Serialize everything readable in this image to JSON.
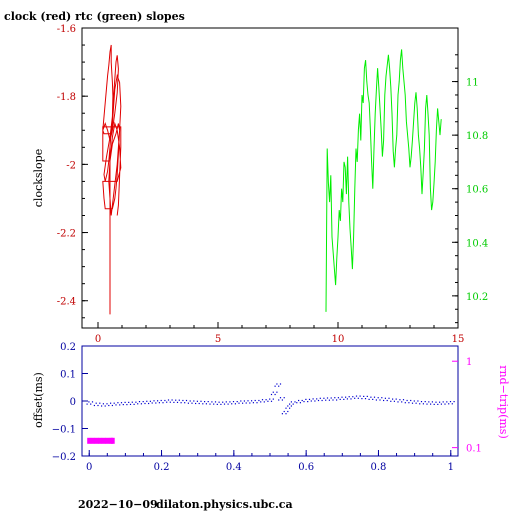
{
  "chart_data": [
    {
      "type": "line",
      "title": "clock (red) rtc (green) slopes",
      "ylabel": "clockslope",
      "xlim": [
        0,
        15
      ],
      "ylim_left": [
        -2.48,
        -1.6
      ],
      "ylim_right": [
        10.08,
        11.2
      ],
      "x_ticks": [
        "0",
        "5",
        "10",
        "15"
      ],
      "y_ticks_left": [
        "-1.6",
        "-1.8",
        "-2",
        "-2.2",
        "-2.4"
      ],
      "y_ticks_right": [
        "11",
        "10.8",
        "10.6",
        "10.4",
        "10.2"
      ],
      "colors": {
        "clock": "#e00000",
        "rtc": "#00ee00",
        "axis_left": "#c00000",
        "axis_bottom": "#c00000",
        "axis_right": "#00cc00"
      },
      "series": [
        {
          "axis": "left",
          "x": [
            0.2,
            0.3,
            0.35,
            0.4,
            0.45,
            0.5,
            0.55,
            0.55,
            0.6,
            0.62,
            0.6,
            0.55,
            0.5,
            0.45,
            0.4,
            0.3,
            0.25,
            0.35,
            0.5,
            0.6,
            0.65,
            0.7,
            0.75,
            0.8,
            0.85,
            0.8,
            0.7,
            0.6,
            0.5,
            0.4,
            0.3,
            0.2,
            0.25,
            0.35,
            0.45,
            0.55,
            0.6,
            0.65,
            0.7,
            0.8,
            0.9,
            0.95,
            0.9,
            0.85,
            0.8,
            0.75,
            0.7,
            0.6,
            0.5,
            0.4,
            0.3,
            0.25,
            0.2,
            0.25,
            0.5,
            0.8,
            0.95,
            0.9,
            0.8,
            0.7,
            0.6,
            0.5,
            0.45,
            0.5,
            0.55,
            0.6,
            0.7,
            0.8,
            0.85,
            0.9,
            0.85,
            0.75,
            0.6,
            0.5,
            0.4,
            0.3,
            0.2,
            0.2,
            0.95,
            0.95,
            0.85,
            0.8
          ],
          "y": [
            -1.9,
            -1.82,
            -1.78,
            -1.74,
            -1.71,
            -1.67,
            -1.65,
            -1.7,
            -1.76,
            -1.8,
            -1.86,
            -1.9,
            -1.95,
            -1.99,
            -2.02,
            -2.05,
            -2.03,
            -1.98,
            -1.92,
            -1.86,
            -1.8,
            -1.75,
            -1.7,
            -1.68,
            -1.72,
            -1.79,
            -1.85,
            -1.9,
            -1.93,
            -1.9,
            -1.88,
            -1.9,
            -1.91,
            -1.91,
            -1.91,
            -1.91,
            -1.88,
            -1.83,
            -1.78,
            -1.74,
            -1.76,
            -1.83,
            -1.9,
            -1.97,
            -2.03,
            -2.07,
            -2.1,
            -2.13,
            -2.13,
            -2.13,
            -2.13,
            -2.1,
            -2.05,
            -2.05,
            -2.05,
            -2.05,
            -2.01,
            -1.95,
            -1.9,
            -1.88,
            -1.92,
            -1.99,
            -2.05,
            -2.1,
            -2.15,
            -2.12,
            -2.06,
            -2.0,
            -1.95,
            -1.9,
            -1.88,
            -1.91,
            -1.94,
            -1.99,
            -1.99,
            -1.99,
            -1.99,
            -1.89,
            -1.89,
            -1.95,
            -2.12,
            -2.15
          ]
        },
        {
          "axis": "left",
          "x": [
            0.5,
            0.5
          ],
          "y": [
            -1.95,
            -2.44
          ]
        },
        {
          "axis": "right",
          "x": [
            9.5,
            9.55,
            9.6,
            9.65,
            9.7,
            9.75,
            9.8,
            9.85,
            9.9,
            9.95,
            10.0,
            10.05,
            10.1,
            10.15,
            10.2,
            10.25,
            10.3,
            10.35,
            10.4,
            10.45,
            10.5,
            10.55,
            10.6,
            10.65,
            10.7,
            10.75,
            10.8,
            10.85,
            10.9,
            10.95,
            11.0,
            11.05,
            11.1,
            11.15,
            11.2,
            11.25,
            11.3,
            11.35,
            11.4,
            11.45,
            11.5,
            11.55,
            11.6,
            11.65,
            11.7,
            11.75,
            11.8,
            11.85,
            11.9,
            11.95,
            12.0,
            12.05,
            12.1,
            12.15,
            12.2,
            12.25,
            12.3,
            12.35,
            12.4,
            12.45,
            12.5,
            12.55,
            12.6,
            12.65,
            12.7,
            12.75,
            12.8,
            12.85,
            12.9,
            12.95,
            13.0,
            13.05,
            13.1,
            13.15,
            13.2,
            13.25,
            13.3,
            13.35,
            13.4,
            13.45,
            13.5,
            13.55,
            13.6,
            13.65,
            13.7,
            13.75,
            13.8,
            13.85,
            13.9,
            13.95,
            14.0,
            14.05,
            14.1,
            14.15,
            14.2,
            14.25,
            14.3
          ],
          "y": [
            10.14,
            10.75,
            10.62,
            10.55,
            10.65,
            10.42,
            10.36,
            10.3,
            10.24,
            10.34,
            10.42,
            10.52,
            10.48,
            10.6,
            10.55,
            10.7,
            10.68,
            10.58,
            10.72,
            10.55,
            10.45,
            10.38,
            10.3,
            10.42,
            10.6,
            10.75,
            10.7,
            10.82,
            10.88,
            10.78,
            10.95,
            10.92,
            11.05,
            11.08,
            11.0,
            10.95,
            10.92,
            10.82,
            10.7,
            10.6,
            10.75,
            10.88,
            10.97,
            11.05,
            10.98,
            10.9,
            10.82,
            10.72,
            10.78,
            10.95,
            11.02,
            11.06,
            11.1,
            11.05,
            10.98,
            10.88,
            10.74,
            10.68,
            10.75,
            10.8,
            10.95,
            11.0,
            11.08,
            11.12,
            11.05,
            11.0,
            10.95,
            10.85,
            10.8,
            10.75,
            10.68,
            10.72,
            10.78,
            10.85,
            10.92,
            10.96,
            10.9,
            10.8,
            10.75,
            10.68,
            10.58,
            10.66,
            10.75,
            10.9,
            10.95,
            10.88,
            10.8,
            10.6,
            10.52,
            10.55,
            10.62,
            10.7,
            10.82,
            10.9,
            10.85,
            10.8,
            10.86
          ]
        }
      ]
    },
    {
      "type": "scatter",
      "xlabel": "",
      "ylabel": "offset(ms)",
      "ylabel_right": "rnd−trip(ms)",
      "xlim": [
        -0.02,
        1.02
      ],
      "ylim": [
        -0.2,
        0.2
      ],
      "ylim_right_log": [
        0.08,
        1.5
      ],
      "x_ticks": [
        "0",
        "0.2",
        "0.4",
        "0.6",
        "0.8",
        "1"
      ],
      "y_ticks_left": [
        "0.2",
        "0.1",
        "0",
        "−0.1",
        "−0.2"
      ],
      "y_ticks_right": [
        "1",
        "0.1"
      ],
      "colors": {
        "offset": "#0000d0",
        "rtt": "#ff00ff",
        "axis_left": "#0000a0",
        "axis_right": "#ff00ff"
      },
      "series": [
        {
          "name": "offset",
          "x": [
            0.0,
            0.02,
            0.04,
            0.06,
            0.08,
            0.1,
            0.12,
            0.14,
            0.16,
            0.18,
            0.2,
            0.22,
            0.24,
            0.26,
            0.28,
            0.3,
            0.32,
            0.34,
            0.36,
            0.38,
            0.4,
            0.42,
            0.44,
            0.46,
            0.48,
            0.5,
            0.51,
            0.52,
            0.53,
            0.54,
            0.55,
            0.56,
            0.58,
            0.6,
            0.62,
            0.64,
            0.66,
            0.68,
            0.7,
            0.72,
            0.74,
            0.76,
            0.78,
            0.8,
            0.82,
            0.84,
            0.86,
            0.88,
            0.9,
            0.92,
            0.94,
            0.96,
            0.98,
            1.0
          ],
          "y": [
            -0.005,
            -0.01,
            -0.012,
            -0.01,
            -0.008,
            -0.007,
            -0.006,
            -0.004,
            -0.003,
            -0.001,
            0.0,
            0.002,
            0.001,
            0.0,
            -0.002,
            -0.003,
            -0.004,
            -0.005,
            -0.006,
            -0.005,
            -0.004,
            -0.002,
            -0.001,
            0.0,
            0.003,
            0.005,
            0.03,
            0.06,
            0.01,
            -0.04,
            -0.02,
            -0.005,
            0.0,
            0.004,
            0.006,
            0.008,
            0.009,
            0.01,
            0.012,
            0.014,
            0.016,
            0.015,
            0.012,
            0.01,
            0.008,
            0.005,
            0.003,
            0.0,
            -0.002,
            -0.004,
            -0.005,
            -0.006,
            -0.005,
            -0.004
          ]
        },
        {
          "name": "rnd-trip",
          "x": [
            0.0,
            0.01,
            0.02,
            0.03,
            0.04,
            0.05,
            0.06,
            0.065
          ],
          "y": [
            0.12,
            0.12,
            0.12,
            0.12,
            0.12,
            0.12,
            0.12,
            0.12
          ]
        }
      ]
    }
  ],
  "footer": {
    "date": "2022−10−09",
    "host": "dilaton.physics.ubc.ca"
  }
}
